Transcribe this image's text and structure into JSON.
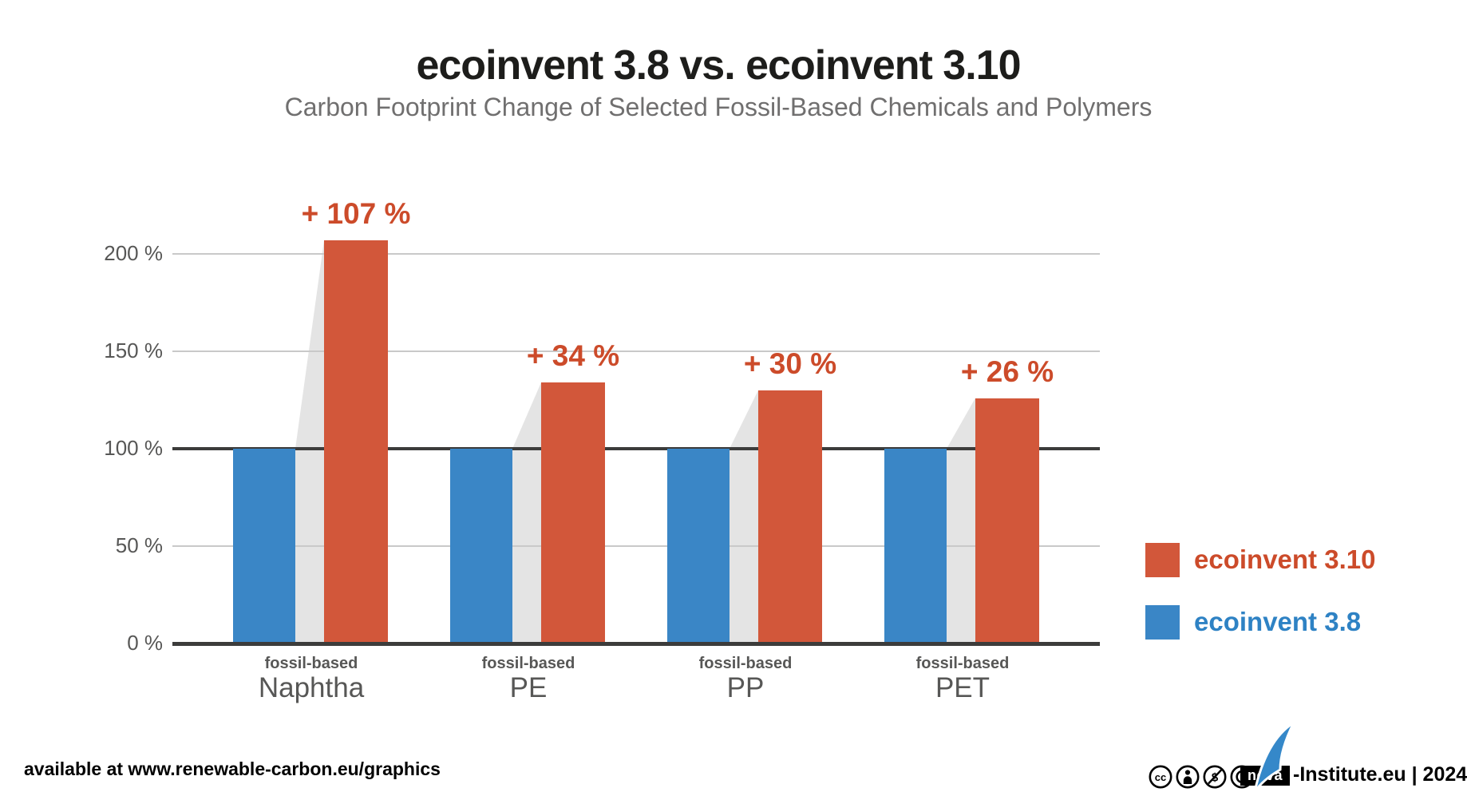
{
  "page": {
    "title": "ecoinvent 3.8 vs. ecoinvent 3.10",
    "subtitle": "Carbon Footprint Change of Selected Fossil-Based Chemicals and Polymers"
  },
  "legend": {
    "items": [
      {
        "label": "ecoinvent 3.10",
        "color": "#D2573A",
        "text_color": "#CC4B2A"
      },
      {
        "label": "ecoinvent 3.8",
        "color": "#3A86C6",
        "text_color": "#2E82C4"
      }
    ]
  },
  "footer": {
    "availability": "available at www.renewable-carbon.eu/graphics",
    "license_icons": [
      "cc-icon",
      "cc-by-icon",
      "cc-nc-icon",
      "cc-sa-icon"
    ],
    "logo_text": "nova",
    "credit": "-Institute.eu | 2024"
  },
  "colors": {
    "orange_bar": "#D2573A",
    "orange_accent": "#CC4B2A",
    "blue_bar": "#3A86C6",
    "wedge_gray": "#E4E4E4",
    "gridline": "#C9C9C9",
    "dark_line": "#3C3C3B",
    "axis_text": "#575756",
    "subtitle_text": "#706F6F",
    "title_text": "#1D1D1B"
  },
  "chart_data": {
    "type": "bar",
    "title": "ecoinvent 3.8 vs. ecoinvent 3.10",
    "subtitle": "Carbon Footprint Change of Selected Fossil-Based Chemicals and Polymers",
    "categories": [
      "Naphtha",
      "PE",
      "PP",
      "PET"
    ],
    "category_qualifier": "fossil-based",
    "series": [
      {
        "name": "ecoinvent 3.8",
        "color": "#3A86C6",
        "values": [
          100,
          100,
          100,
          100
        ]
      },
      {
        "name": "ecoinvent 3.10",
        "color": "#D2573A",
        "values": [
          207,
          134,
          130,
          126
        ]
      }
    ],
    "change_labels": [
      "+ 107 %",
      "+ 34 %",
      "+ 30 %",
      "+ 26 %"
    ],
    "yticks": [
      0,
      50,
      100,
      150,
      200
    ],
    "ytick_suffix": " %",
    "ylim": [
      0,
      230
    ],
    "highlight_value": 100,
    "grid": true,
    "legend_position": "right"
  }
}
